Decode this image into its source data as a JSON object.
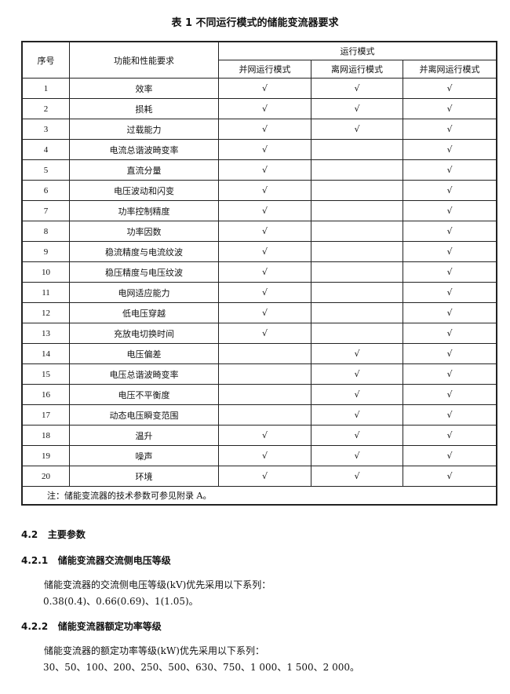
{
  "title": "表 1   不同运行模式的储能变流器要求",
  "table": {
    "headers": {
      "seq": "序号",
      "requirement": "功能和性能要求",
      "mode_group": "运行模式",
      "modes": [
        "并网运行模式",
        "离网运行模式",
        "并离网运行模式"
      ]
    },
    "check_mark": "√",
    "rows": [
      {
        "seq": "1",
        "name": "效率",
        "marks": [
          true,
          true,
          true
        ]
      },
      {
        "seq": "2",
        "name": "损耗",
        "marks": [
          true,
          true,
          true
        ]
      },
      {
        "seq": "3",
        "name": "过载能力",
        "marks": [
          true,
          true,
          true
        ]
      },
      {
        "seq": "4",
        "name": "电流总谐波畸变率",
        "marks": [
          true,
          false,
          true
        ]
      },
      {
        "seq": "5",
        "name": "直流分量",
        "marks": [
          true,
          false,
          true
        ]
      },
      {
        "seq": "6",
        "name": "电压波动和闪变",
        "marks": [
          true,
          false,
          true
        ]
      },
      {
        "seq": "7",
        "name": "功率控制精度",
        "marks": [
          true,
          false,
          true
        ]
      },
      {
        "seq": "8",
        "name": "功率因数",
        "marks": [
          true,
          false,
          true
        ]
      },
      {
        "seq": "9",
        "name": "稳流精度与电流纹波",
        "marks": [
          true,
          false,
          true
        ]
      },
      {
        "seq": "10",
        "name": "稳压精度与电压纹波",
        "marks": [
          true,
          false,
          true
        ]
      },
      {
        "seq": "11",
        "name": "电网适应能力",
        "marks": [
          true,
          false,
          true
        ]
      },
      {
        "seq": "12",
        "name": "低电压穿越",
        "marks": [
          true,
          false,
          true
        ]
      },
      {
        "seq": "13",
        "name": "充放电切换时间",
        "marks": [
          true,
          false,
          true
        ]
      },
      {
        "seq": "14",
        "name": "电压偏差",
        "marks": [
          false,
          true,
          true
        ]
      },
      {
        "seq": "15",
        "name": "电压总谐波畸变率",
        "marks": [
          false,
          true,
          true
        ]
      },
      {
        "seq": "16",
        "name": "电压不平衡度",
        "marks": [
          false,
          true,
          true
        ]
      },
      {
        "seq": "17",
        "name": "动态电压瞬变范围",
        "marks": [
          false,
          true,
          true
        ]
      },
      {
        "seq": "18",
        "name": "温升",
        "marks": [
          true,
          true,
          true
        ]
      },
      {
        "seq": "19",
        "name": "噪声",
        "marks": [
          true,
          true,
          true
        ]
      },
      {
        "seq": "20",
        "name": "环境",
        "marks": [
          true,
          true,
          true
        ]
      }
    ],
    "note": "注：储能变流器的技术参数可参见附录 A。"
  },
  "sections": {
    "s42": {
      "number": "4.2",
      "title": "主要参数"
    },
    "s421": {
      "number": "4.2.1",
      "title": "储能变流器交流侧电压等级",
      "text": "储能变流器的交流侧电压等级(kV)优先采用以下系列：",
      "values": "0.38(0.4)、0.66(0.69)、1(1.05)。"
    },
    "s422": {
      "number": "4.2.2",
      "title": "储能变流器额定功率等级",
      "text": "储能变流器的额定功率等级(kW)优先采用以下系列：",
      "values": "30、50、100、200、250、500、630、750、1 000、1 500、2 000。"
    }
  }
}
